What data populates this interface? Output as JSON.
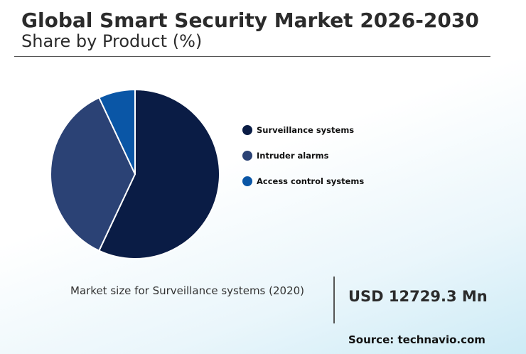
{
  "title": "Global Smart Security Market 2026-2030",
  "subtitle": "Share by Product (%)",
  "chart_data": {
    "type": "pie",
    "categories": [
      "Surveillance systems",
      "Intruder alarms",
      "Access control systems"
    ],
    "values": [
      57,
      36,
      7
    ],
    "colors": [
      "#0a1c45",
      "#2b4275",
      "#0a56a6"
    ],
    "legend_position": "right"
  },
  "callout": {
    "label": "Market size for Surveillance systems (2020)",
    "value": "USD 12729.3 Mn"
  },
  "source": "Source: technavio.com"
}
